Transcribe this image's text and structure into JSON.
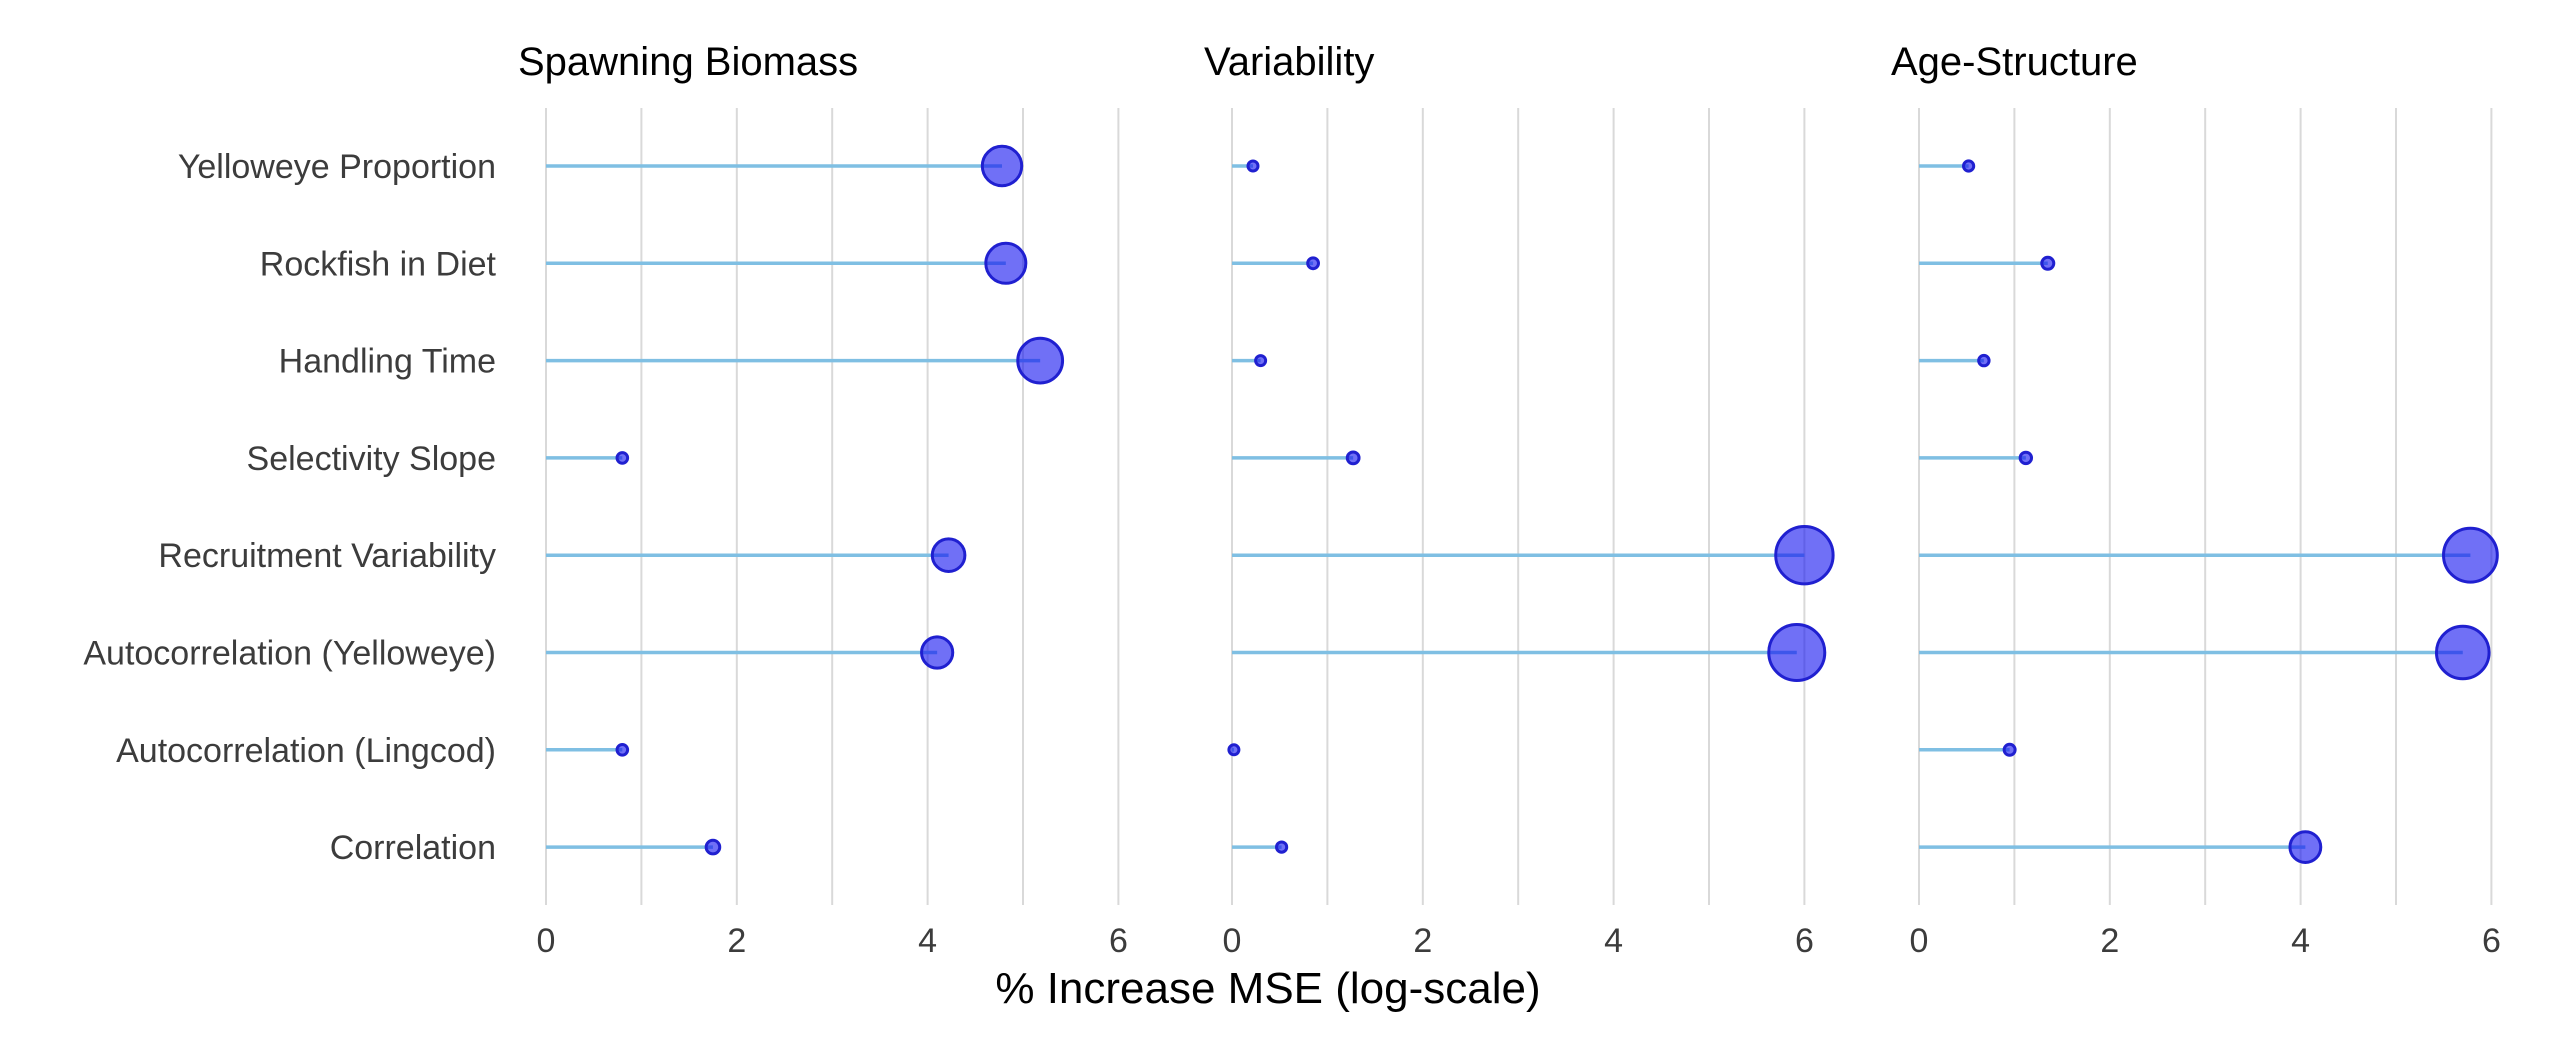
{
  "chart_data": {
    "type": "lollipop",
    "xlabel": "% Increase MSE (log-scale)",
    "categories": [
      "Yelloweye Proportion",
      "Rockfish in Diet",
      "Handling Time",
      "Selectivity Slope",
      "Recruitment Variability",
      "Autocorrelation (Yelloweye)",
      "Autocorrelation (Lingcod)",
      "Correlation"
    ],
    "xticks": [
      0,
      2,
      4,
      6
    ],
    "xlim": [
      0,
      6
    ],
    "grid": true,
    "colors": {
      "stem": "#7fbfe3",
      "dot_fill": "#1010f0",
      "dot_stroke": "#2020d0"
    },
    "panels": [
      {
        "title": "Spawning Biomass",
        "values": [
          4.78,
          4.82,
          5.18,
          0.8,
          4.22,
          4.1,
          0.8,
          1.75
        ]
      },
      {
        "title": "Variability",
        "values": [
          0.22,
          0.85,
          0.3,
          1.27,
          6.0,
          5.92,
          0.02,
          0.52
        ]
      },
      {
        "title": "Age-Structure",
        "values": [
          0.52,
          1.35,
          0.68,
          1.12,
          5.78,
          5.7,
          0.95,
          4.05
        ]
      }
    ]
  }
}
